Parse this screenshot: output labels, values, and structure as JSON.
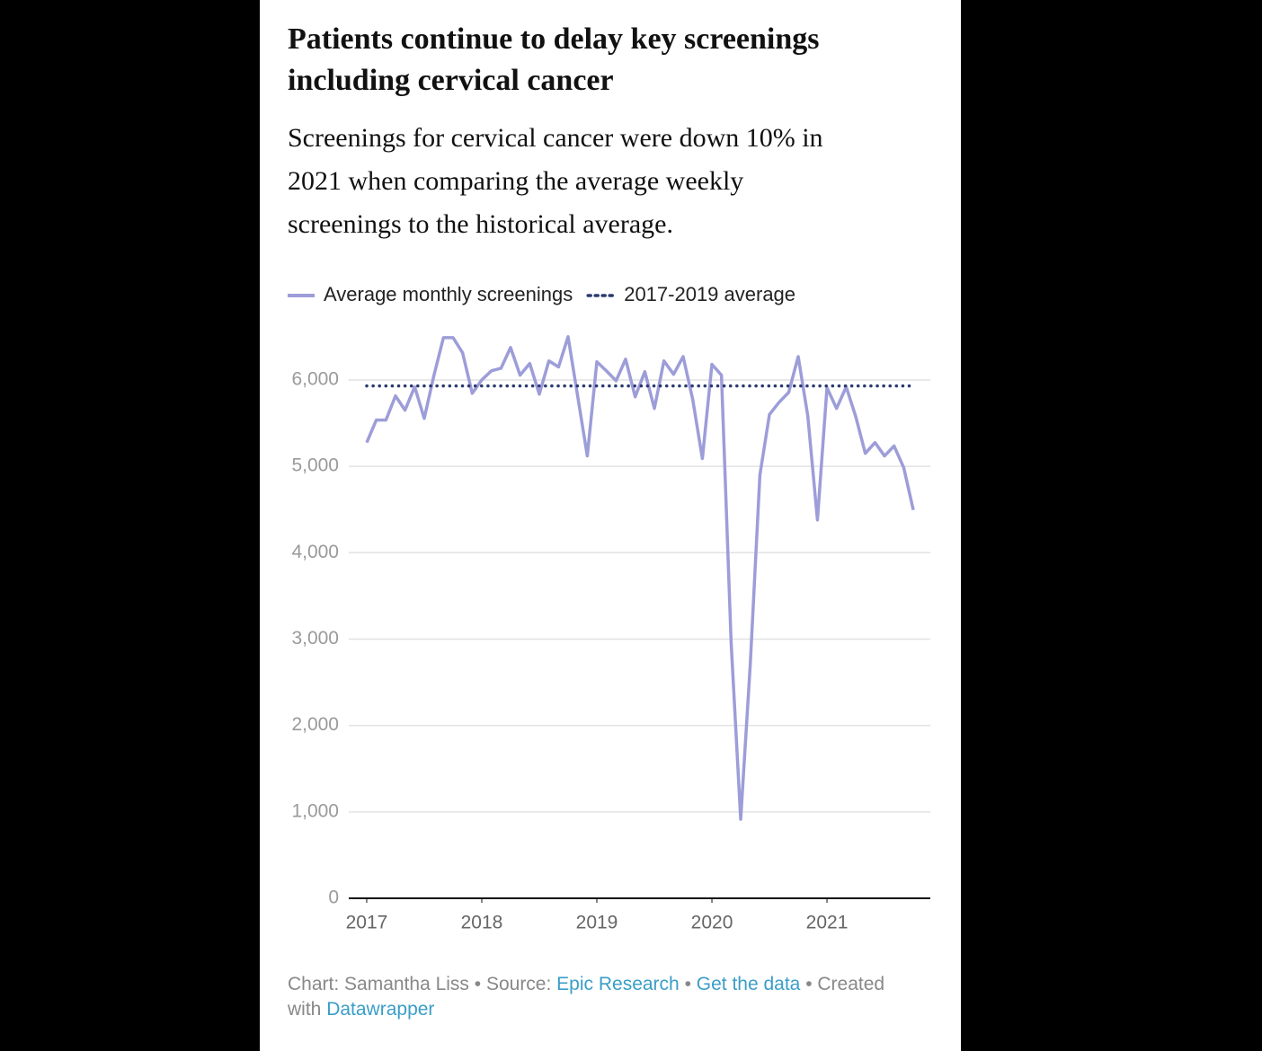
{
  "chart_data": {
    "type": "line",
    "title": [
      "Patients continue to delay key screenings",
      "including cervical cancer"
    ],
    "subtitle": [
      "Screenings for cervical cancer were down 10% in",
      "2021 when comparing the average weekly",
      "screenings to the historical average."
    ],
    "x": [
      2017,
      2017.083,
      2017.167,
      2017.25,
      2017.333,
      2017.417,
      2017.5,
      2017.583,
      2017.667,
      2017.75,
      2017.833,
      2017.917,
      2018,
      2018.083,
      2018.167,
      2018.25,
      2018.333,
      2018.417,
      2018.5,
      2018.583,
      2018.667,
      2018.75,
      2018.833,
      2018.917,
      2019,
      2019.083,
      2019.167,
      2019.25,
      2019.333,
      2019.417,
      2019.5,
      2019.583,
      2019.667,
      2019.75,
      2019.833,
      2019.917,
      2020,
      2020.083,
      2020.167,
      2020.25,
      2020.333,
      2020.417,
      2020.5,
      2020.583,
      2020.667,
      2020.75,
      2020.833,
      2020.917,
      2021,
      2021.083,
      2021.167,
      2021.25,
      2021.333,
      2021.417,
      2021.5,
      2021.583,
      2021.667,
      2021.75
    ],
    "series": [
      {
        "name": "Average monthly screenings",
        "color": "#9d9dd9",
        "values": [
          5275,
          5535,
          5535,
          5815,
          5650,
          5920,
          5555,
          6045,
          6490,
          6490,
          6315,
          5845,
          6000,
          6105,
          6135,
          6375,
          6055,
          6190,
          5835,
          6220,
          6150,
          6500,
          5815,
          5120,
          6210,
          6105,
          5990,
          6240,
          5805,
          6095,
          5670,
          6220,
          6065,
          6270,
          5775,
          5090,
          6180,
          6055,
          2960,
          915,
          2700,
          4900,
          5600,
          5740,
          5855,
          6270,
          5585,
          4380,
          5910,
          5670,
          5920,
          5575,
          5150,
          5275,
          5120,
          5235,
          4985,
          4495
        ]
      },
      {
        "name": "2017-2019 average",
        "color": "#2b3a6e",
        "dash": "dotted",
        "value": 5930
      }
    ],
    "xlim": [
      2016.844,
      2021.898
    ],
    "xticks": [
      2017,
      2018,
      2019,
      2020,
      2021
    ],
    "ylim": [
      0,
      6800
    ],
    "yticks": [
      0,
      {
        "value": 1000,
        "label": "1,000"
      },
      {
        "value": 2000,
        "label": "2,000"
      },
      {
        "value": 3000,
        "label": "3,000"
      },
      {
        "value": 4000,
        "label": "4,000"
      },
      {
        "value": 5000,
        "label": "5,000"
      },
      {
        "value": 6000,
        "label": "6,000"
      }
    ],
    "grid": true,
    "footer": {
      "text1": "Chart: Samantha Liss • Source: ",
      "link1": "Epic Research",
      "sep": " • ",
      "link2": "Get the data",
      "text2": " • Created with ",
      "link3": "Datawrapper"
    }
  }
}
